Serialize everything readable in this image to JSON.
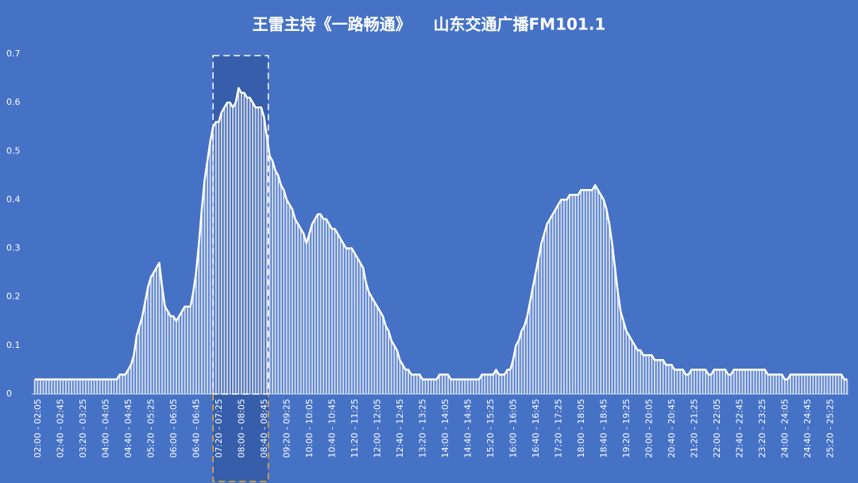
{
  "chart_data": {
    "type": "bar",
    "title": "王雷主持《一路畅通》    山东交通广播FM101.1",
    "color": "#ffffff",
    "line_color": "#ffffff",
    "background": "#4672c6",
    "ylim": [
      0,
      0.7
    ],
    "yticks": [
      0,
      0.1,
      0.2,
      0.3,
      0.4,
      0.5,
      0.6,
      0.7
    ],
    "grid": false,
    "categories": [
      "02:00 - 02:05",
      null,
      null,
      null,
      null,
      null,
      null,
      null,
      "02:40 - 02:45",
      null,
      null,
      null,
      null,
      null,
      null,
      null,
      "03:20 - 03:25",
      null,
      null,
      null,
      null,
      null,
      null,
      null,
      "04:00 - 04:05",
      null,
      null,
      null,
      null,
      null,
      null,
      null,
      "04:40 - 04:45",
      null,
      null,
      null,
      null,
      null,
      null,
      null,
      "05:20 - 05:25",
      null,
      null,
      null,
      null,
      null,
      null,
      null,
      "06:00 - 06:05",
      null,
      null,
      null,
      null,
      null,
      null,
      null,
      "06:40 - 06:45",
      null,
      null,
      null,
      null,
      null,
      null,
      null,
      "07:20 - 07:25",
      null,
      null,
      null,
      null,
      null,
      null,
      null,
      "08:00 - 08:05",
      null,
      null,
      null,
      null,
      null,
      null,
      null,
      "08:40 - 08:45",
      null,
      null,
      null,
      null,
      null,
      null,
      null,
      "09:20 - 09:25",
      null,
      null,
      null,
      null,
      null,
      null,
      null,
      "10:00 - 10:05",
      null,
      null,
      null,
      null,
      null,
      null,
      null,
      "10:40 - 10:45",
      null,
      null,
      null,
      null,
      null,
      null,
      null,
      "11:20 - 11:25",
      null,
      null,
      null,
      null,
      null,
      null,
      null,
      "12:00 - 12:05",
      null,
      null,
      null,
      null,
      null,
      null,
      null,
      "12:40 - 12:45",
      null,
      null,
      null,
      null,
      null,
      null,
      null,
      "13:20 - 13:25",
      null,
      null,
      null,
      null,
      null,
      null,
      null,
      "14:00 - 14:05",
      null,
      null,
      null,
      null,
      null,
      null,
      null,
      "14:40 - 14:45",
      null,
      null,
      null,
      null,
      null,
      null,
      null,
      "15:20 - 15:25",
      null,
      null,
      null,
      null,
      null,
      null,
      null,
      "16:00 - 16:05",
      null,
      null,
      null,
      null,
      null,
      null,
      null,
      "16:40 - 16:45",
      null,
      null,
      null,
      null,
      null,
      null,
      null,
      "17:20 - 17:25",
      null,
      null,
      null,
      null,
      null,
      null,
      null,
      "18:00 - 18:05",
      null,
      null,
      null,
      null,
      null,
      null,
      null,
      "18:40 - 18:45",
      null,
      null,
      null,
      null,
      null,
      null,
      null,
      "19:20 - 19:25",
      null,
      null,
      null,
      null,
      null,
      null,
      null,
      "20:00 - 20:05",
      null,
      null,
      null,
      null,
      null,
      null,
      null,
      "20:40 - 20:45",
      null,
      null,
      null,
      null,
      null,
      null,
      null,
      "21:20 - 21:25",
      null,
      null,
      null,
      null,
      null,
      null,
      null,
      "22:00 - 22:05",
      null,
      null,
      null,
      null,
      null,
      null,
      null,
      "22:40 - 22:45",
      null,
      null,
      null,
      null,
      null,
      null,
      null,
      "23:20 - 23:25",
      null,
      null,
      null,
      null,
      null,
      null,
      null,
      "24:00 - 24:05",
      null,
      null,
      null,
      null,
      null,
      null,
      null,
      "24:40 - 24:45",
      null,
      null,
      null,
      null,
      null,
      null,
      null,
      "25:20 - 25:25",
      null,
      null,
      null,
      null,
      null,
      null,
      null
    ],
    "values": [
      0.03,
      0.03,
      0.03,
      0.03,
      0.03,
      0.03,
      0.03,
      0.03,
      0.03,
      0.03,
      0.03,
      0.03,
      0.03,
      0.03,
      0.03,
      0.03,
      0.03,
      0.03,
      0.03,
      0.03,
      0.03,
      0.03,
      0.03,
      0.03,
      0.03,
      0.03,
      0.03,
      0.03,
      0.03,
      0.03,
      0.04,
      0.04,
      0.04,
      0.05,
      0.06,
      0.08,
      0.12,
      0.14,
      0.16,
      0.19,
      0.22,
      0.24,
      0.25,
      0.26,
      0.27,
      0.22,
      0.18,
      0.17,
      0.16,
      0.16,
      0.15,
      0.16,
      0.17,
      0.18,
      0.18,
      0.18,
      0.21,
      0.25,
      0.31,
      0.38,
      0.44,
      0.48,
      0.52,
      0.55,
      0.56,
      0.56,
      0.58,
      0.59,
      0.6,
      0.6,
      0.59,
      0.6,
      0.63,
      0.62,
      0.62,
      0.61,
      0.61,
      0.6,
      0.59,
      0.59,
      0.59,
      0.57,
      0.53,
      0.49,
      0.48,
      0.46,
      0.45,
      0.43,
      0.42,
      0.4,
      0.39,
      0.38,
      0.36,
      0.35,
      0.34,
      0.33,
      0.31,
      0.33,
      0.35,
      0.36,
      0.37,
      0.37,
      0.36,
      0.36,
      0.35,
      0.34,
      0.34,
      0.33,
      0.32,
      0.31,
      0.3,
      0.3,
      0.3,
      0.29,
      0.28,
      0.27,
      0.26,
      0.23,
      0.21,
      0.2,
      0.19,
      0.18,
      0.17,
      0.16,
      0.14,
      0.13,
      0.11,
      0.1,
      0.09,
      0.07,
      0.06,
      0.05,
      0.05,
      0.04,
      0.04,
      0.04,
      0.04,
      0.03,
      0.03,
      0.03,
      0.03,
      0.03,
      0.03,
      0.04,
      0.04,
      0.04,
      0.04,
      0.03,
      0.03,
      0.03,
      0.03,
      0.03,
      0.03,
      0.03,
      0.03,
      0.03,
      0.03,
      0.03,
      0.04,
      0.04,
      0.04,
      0.04,
      0.04,
      0.05,
      0.04,
      0.04,
      0.04,
      0.05,
      0.05,
      0.07,
      0.1,
      0.11,
      0.13,
      0.14,
      0.16,
      0.19,
      0.22,
      0.25,
      0.28,
      0.31,
      0.33,
      0.35,
      0.36,
      0.37,
      0.38,
      0.39,
      0.4,
      0.4,
      0.4,
      0.41,
      0.41,
      0.41,
      0.41,
      0.42,
      0.42,
      0.42,
      0.42,
      0.42,
      0.43,
      0.42,
      0.41,
      0.4,
      0.38,
      0.35,
      0.31,
      0.26,
      0.21,
      0.17,
      0.15,
      0.13,
      0.12,
      0.11,
      0.1,
      0.09,
      0.09,
      0.08,
      0.08,
      0.08,
      0.08,
      0.07,
      0.07,
      0.07,
      0.07,
      0.06,
      0.06,
      0.06,
      0.05,
      0.05,
      0.05,
      0.05,
      0.04,
      0.04,
      0.05,
      0.05,
      0.05,
      0.05,
      0.05,
      0.05,
      0.04,
      0.04,
      0.05,
      0.05,
      0.05,
      0.05,
      0.05,
      0.04,
      0.04,
      0.05,
      0.05,
      0.05,
      0.05,
      0.05,
      0.05,
      0.05,
      0.05,
      0.05,
      0.05,
      0.05,
      0.05,
      0.04,
      0.04,
      0.04,
      0.04,
      0.04,
      0.04,
      0.03,
      0.03,
      0.04,
      0.04,
      0.04,
      0.04,
      0.04,
      0.04,
      0.04,
      0.04,
      0.04,
      0.04,
      0.04,
      0.04,
      0.04,
      0.04,
      0.04,
      0.04,
      0.04,
      0.04,
      0.04,
      0.03,
      0.03
    ]
  }
}
